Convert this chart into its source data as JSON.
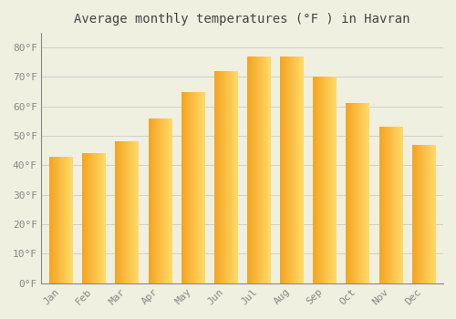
{
  "title": "Average monthly temperatures (°F ) in Havran",
  "months": [
    "Jan",
    "Feb",
    "Mar",
    "Apr",
    "May",
    "Jun",
    "Jul",
    "Aug",
    "Sep",
    "Oct",
    "Nov",
    "Dec"
  ],
  "values": [
    43,
    44,
    48,
    56,
    65,
    72,
    77,
    77,
    70,
    61,
    53,
    47
  ],
  "bar_color_dark": "#F5A623",
  "bar_color_light": "#FFD966",
  "ylim": [
    0,
    85
  ],
  "yticks": [
    0,
    10,
    20,
    30,
    40,
    50,
    60,
    70,
    80
  ],
  "ytick_labels": [
    "0°F",
    "10°F",
    "20°F",
    "30°F",
    "40°F",
    "50°F",
    "60°F",
    "70°F",
    "80°F"
  ],
  "background_color": "#f0f0e0",
  "grid_color": "#d0d0d0",
  "title_fontsize": 10,
  "tick_fontsize": 8,
  "bar_width": 0.7
}
